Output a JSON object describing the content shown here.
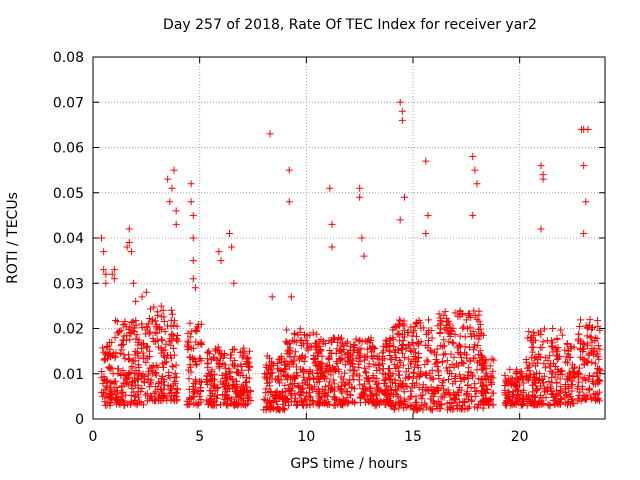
{
  "chart_data": {
    "type": "scatter",
    "title": "Day 257 of 2018, Rate Of TEC Index for receiver yar2",
    "xlabel": "GPS time / hours",
    "ylabel": "ROTI / TECUs",
    "xlim": [
      0,
      24
    ],
    "ylim": [
      0,
      0.08
    ],
    "xticks": [
      0,
      5,
      10,
      15,
      20
    ],
    "xtick_labels": [
      "0",
      "5",
      "10",
      "15",
      "20"
    ],
    "yticks": [
      0,
      0.01,
      0.02,
      0.03,
      0.04,
      0.05,
      0.06,
      0.07,
      0.08
    ],
    "ytick_labels": [
      "0",
      "0.01",
      "0.02",
      "0.03",
      "0.04",
      "0.05",
      "0.06",
      "0.07",
      "0.08"
    ],
    "grid": true,
    "marker": "+",
    "colors": {
      "points": "#ff0000",
      "grid": "#a0a0a0",
      "axes": "#000000"
    },
    "series": [
      {
        "name": "ROTI",
        "x": [
          0.4,
          0.5,
          0.5,
          0.6,
          0.6,
          0.9,
          1.0,
          1.0,
          1.6,
          1.7,
          1.7,
          1.8,
          1.9,
          2.0,
          2.3,
          2.5,
          3.5,
          3.6,
          3.7,
          3.8,
          3.9,
          3.9,
          4.6,
          4.6,
          4.7,
          4.7,
          4.7,
          4.8,
          4.7,
          5.9,
          6.0,
          6.4,
          6.5,
          6.6,
          8.3,
          8.4,
          9.2,
          9.2,
          9.3,
          11.1,
          11.2,
          11.2,
          12.5,
          12.5,
          12.6,
          12.7,
          14.4,
          14.5,
          14.5,
          14.6,
          14.4,
          15.6,
          15.7,
          15.6,
          17.8,
          17.9,
          18.0,
          17.8,
          21.0,
          21.1,
          21.1,
          21.0,
          22.9,
          23.0,
          23.0,
          23.2,
          23.1,
          23.0
        ],
        "y": [
          0.04,
          0.037,
          0.033,
          0.032,
          0.03,
          0.032,
          0.031,
          0.033,
          0.038,
          0.042,
          0.039,
          0.037,
          0.03,
          0.026,
          0.027,
          0.028,
          0.053,
          0.048,
          0.051,
          0.055,
          0.046,
          0.043,
          0.052,
          0.048,
          0.045,
          0.04,
          0.035,
          0.029,
          0.031,
          0.037,
          0.035,
          0.041,
          0.038,
          0.03,
          0.063,
          0.027,
          0.055,
          0.048,
          0.027,
          0.051,
          0.043,
          0.038,
          0.051,
          0.049,
          0.04,
          0.036,
          0.07,
          0.068,
          0.066,
          0.049,
          0.044,
          0.057,
          0.045,
          0.041,
          0.058,
          0.055,
          0.052,
          0.045,
          0.056,
          0.054,
          0.053,
          0.042,
          0.064,
          0.064,
          0.056,
          0.064,
          0.048,
          0.041
        ],
        "dense_bands": [
          {
            "x": [
              0.4,
              1.0
            ],
            "y": [
              0.003,
              0.017
            ]
          },
          {
            "x": [
              1.0,
              2.4
            ],
            "y": [
              0.003,
              0.022
            ]
          },
          {
            "x": [
              2.4,
              3.3
            ],
            "y": [
              0.004,
              0.025
            ]
          },
          {
            "x": [
              3.3,
              4.0
            ],
            "y": [
              0.004,
              0.025
            ]
          },
          {
            "x": [
              4.4,
              5.1
            ],
            "y": [
              0.003,
              0.022
            ]
          },
          {
            "x": [
              5.3,
              7.4
            ],
            "y": [
              0.003,
              0.016
            ]
          },
          {
            "x": [
              8.0,
              9.0
            ],
            "y": [
              0.002,
              0.014
            ]
          },
          {
            "x": [
              9.0,
              10.6
            ],
            "y": [
              0.003,
              0.02
            ]
          },
          {
            "x": [
              10.5,
              12.0
            ],
            "y": [
              0.003,
              0.018
            ]
          },
          {
            "x": [
              12.0,
              14.0
            ],
            "y": [
              0.003,
              0.018
            ]
          },
          {
            "x": [
              14.0,
              16.0
            ],
            "y": [
              0.002,
              0.022
            ]
          },
          {
            "x": [
              16.0,
              18.3
            ],
            "y": [
              0.002,
              0.024
            ]
          },
          {
            "x": [
              18.2,
              18.8
            ],
            "y": [
              0.003,
              0.014
            ]
          },
          {
            "x": [
              19.3,
              20.2
            ],
            "y": [
              0.003,
              0.011
            ]
          },
          {
            "x": [
              20.3,
              22.0
            ],
            "y": [
              0.003,
              0.02
            ]
          },
          {
            "x": [
              22.1,
              22.6
            ],
            "y": [
              0.003,
              0.017
            ]
          },
          {
            "x": [
              22.7,
              23.8
            ],
            "y": [
              0.004,
              0.022
            ]
          }
        ]
      }
    ]
  }
}
